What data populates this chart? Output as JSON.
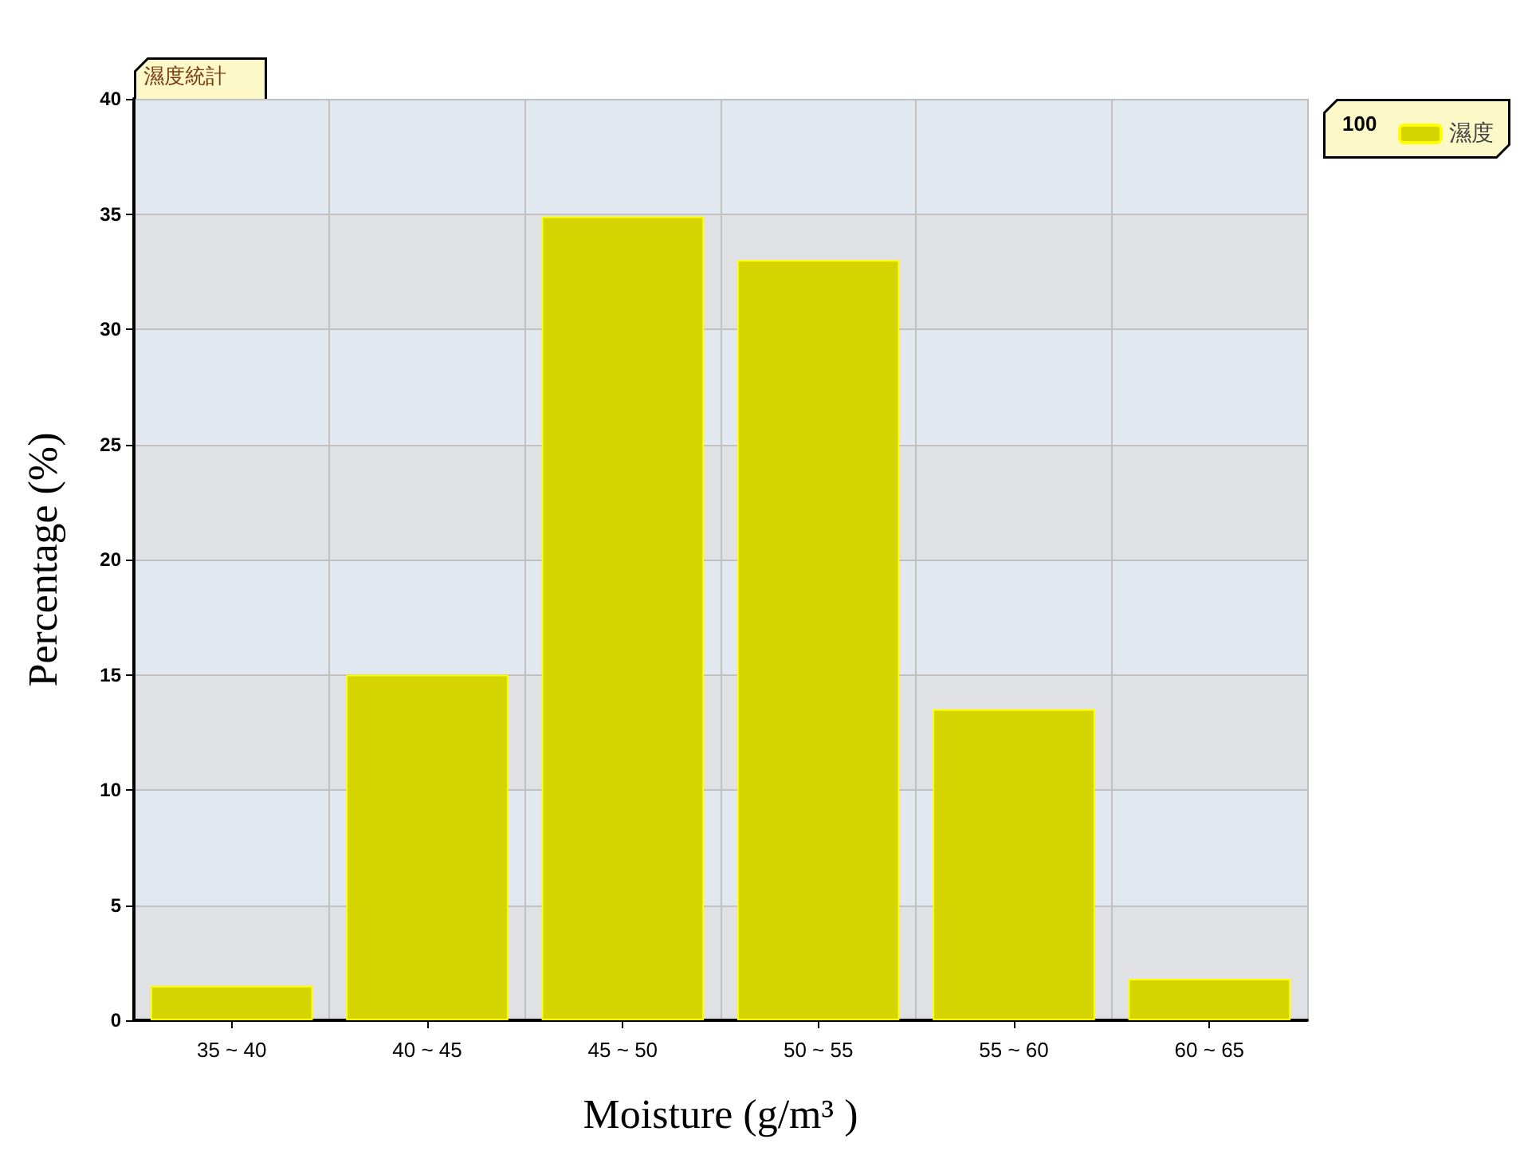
{
  "chart_data": {
    "type": "bar",
    "title": "濕度統計",
    "xlabel": "Moisture (g/m³ )",
    "ylabel": "Percentage (%)",
    "categories": [
      "35 ~ 40",
      "40 ~ 45",
      "45 ~ 50",
      "50 ~ 55",
      "55 ~ 60",
      "60 ~ 65"
    ],
    "series": [
      {
        "name": "濕度",
        "color": "#d4d400",
        "values": [
          1.5,
          15,
          34.9,
          33,
          13.5,
          1.8
        ]
      }
    ],
    "ylim": [
      0,
      40
    ],
    "yticks": [
      0,
      5,
      10,
      15,
      20,
      25,
      30,
      35,
      40
    ],
    "grid": true,
    "legend": "top right",
    "annotations": [
      "100"
    ]
  }
}
